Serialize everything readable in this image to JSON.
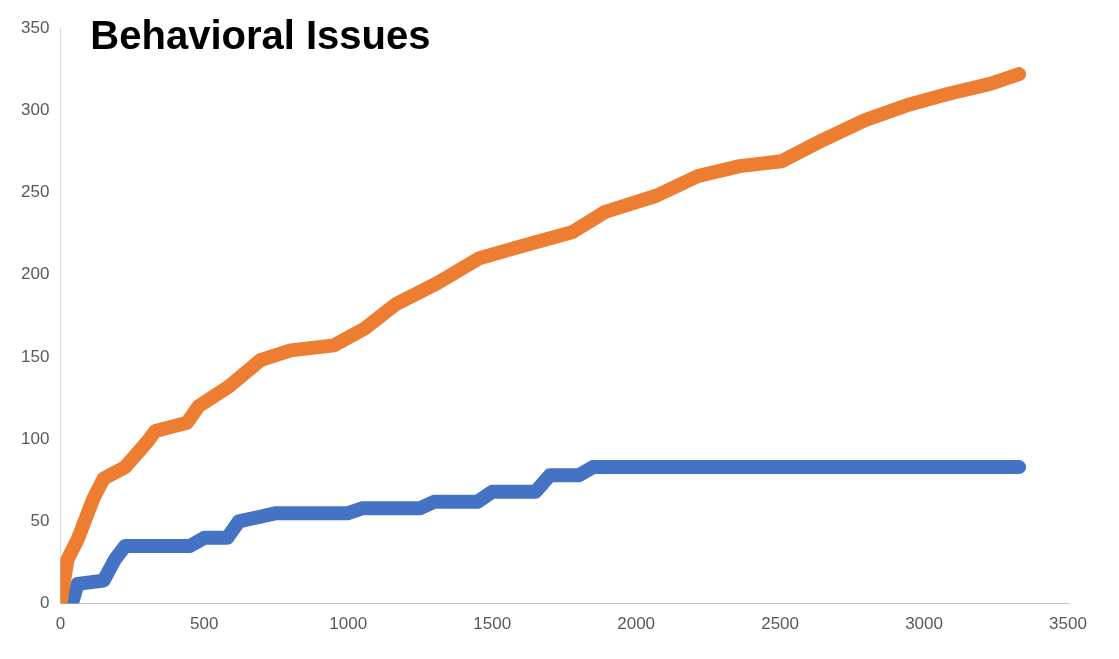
{
  "chart_data": {
    "type": "line",
    "title": "Behavioral Issues",
    "xlim": [
      0,
      3500
    ],
    "xticks": [
      0,
      500,
      1000,
      1500,
      2000,
      2500,
      3000,
      3500
    ],
    "ylim": [
      0,
      350
    ],
    "yticks": [
      0,
      50,
      100,
      150,
      200,
      250,
      300,
      350
    ],
    "grid": false,
    "legend": false,
    "marker": "none",
    "line_style": "solid",
    "series": [
      {
        "color": "#ed7d31",
        "x": [
          0,
          25,
          60,
          115,
          150,
          225,
          300,
          330,
          440,
          480,
          585,
          695,
          800,
          950,
          1055,
          1165,
          1310,
          1455,
          1635,
          1780,
          1890,
          2070,
          2215,
          2360,
          2505,
          2650,
          2795,
          2940,
          3085,
          3230,
          3330
        ],
        "values": [
          0,
          27,
          39,
          64,
          76,
          83,
          98,
          105,
          110,
          120,
          132,
          148,
          154,
          157,
          167,
          182,
          195,
          210,
          219,
          226,
          238,
          248,
          260,
          266,
          269,
          282,
          294,
          303,
          310,
          316,
          322
        ]
      },
      {
        "color": "#4472c4",
        "x": [
          40,
          60,
          150,
          190,
          225,
          450,
          500,
          580,
          620,
          750,
          1000,
          1050,
          1250,
          1300,
          1450,
          1500,
          1650,
          1700,
          1800,
          1850,
          3330
        ],
        "values": [
          0,
          12,
          14,
          27,
          35,
          35,
          40,
          40,
          50,
          55,
          55,
          58,
          58,
          62,
          62,
          68,
          68,
          78,
          78,
          83,
          83
        ]
      }
    ]
  }
}
